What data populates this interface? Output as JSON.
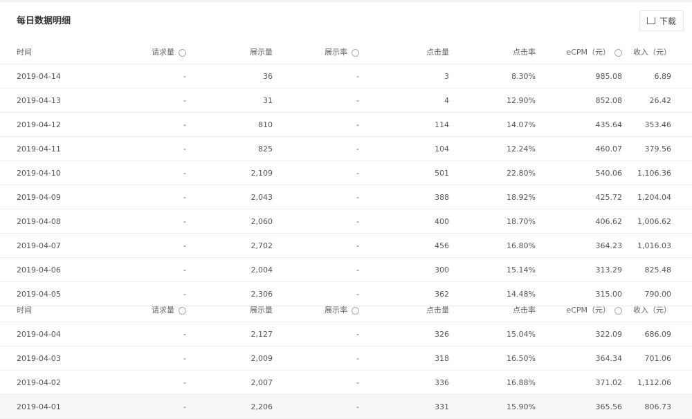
{
  "title": "每日数据明细",
  "download_label": "下载",
  "columns": [
    "时间",
    "请求量",
    "展示量",
    "展示率",
    "点击量",
    "点击率",
    "eCPM（元）",
    "收入（元）"
  ],
  "table1": [
    [
      "2019-04-14",
      "-",
      "36",
      "-",
      "3",
      "8.30%",
      "985.08",
      "6.89"
    ],
    [
      "2019-04-13",
      "-",
      "31",
      "-",
      "4",
      "12.90%",
      "852.08",
      "26.42"
    ],
    [
      "2019-04-12",
      "-",
      "810",
      "-",
      "114",
      "14.07%",
      "435.64",
      "353.46"
    ],
    [
      "2019-04-11",
      "-",
      "825",
      "-",
      "104",
      "12.24%",
      "460.07",
      "379.56"
    ],
    [
      "2019-04-10",
      "-",
      "2,109",
      "-",
      "501",
      "22.80%",
      "540.06",
      "1,106.36"
    ],
    [
      "2019-04-09",
      "-",
      "2,043",
      "-",
      "388",
      "18.92%",
      "425.72",
      "1,204.04"
    ],
    [
      "2019-04-08",
      "-",
      "2,060",
      "-",
      "400",
      "18.70%",
      "406.62",
      "1,006.62"
    ],
    [
      "2019-04-07",
      "-",
      "2,702",
      "-",
      "456",
      "16.80%",
      "364.23",
      "1,016.03"
    ],
    [
      "2019-04-06",
      "-",
      "2,004",
      "-",
      "300",
      "15.14%",
      "313.29",
      "825.48"
    ],
    [
      "2019-04-05",
      "-",
      "2,306",
      "-",
      "362",
      "14.48%",
      "315.00",
      "790.00"
    ]
  ],
  "table2": [
    [
      "2019-04-04",
      "-",
      "2,127",
      "-",
      "326",
      "15.04%",
      "322.09",
      "686.09"
    ],
    [
      "2019-04-03",
      "-",
      "2,009",
      "-",
      "318",
      "16.50%",
      "364.34",
      "701.06"
    ],
    [
      "2019-04-02",
      "-",
      "2,007",
      "-",
      "336",
      "16.88%",
      "371.02",
      "1,112.06"
    ],
    [
      "2019-04-01",
      "-",
      "2,206",
      "-",
      "331",
      "15.90%",
      "365.56",
      "806.73"
    ]
  ]
}
